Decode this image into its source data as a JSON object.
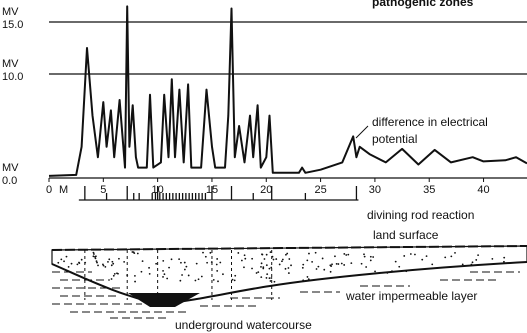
{
  "chart_data": {
    "type": "line",
    "header": "pathogenic zones",
    "y_unit": "MV",
    "x_unit": "M",
    "color": "#111111",
    "x": [
      0,
      2.5,
      3,
      3.5,
      4,
      4.5,
      5,
      5.3,
      5.7,
      6,
      6.5,
      7,
      7.2,
      7.4,
      7.7,
      8,
      8.2,
      9,
      9.3,
      9.6,
      10.3,
      10.6,
      11,
      11.3,
      11.6,
      12,
      12.4,
      12.8,
      13.1,
      14,
      14.5,
      15,
      15.3,
      16.2,
      16.5,
      16.8,
      17.1,
      17.5,
      18,
      18.5,
      18.8,
      19.2,
      19.5,
      20,
      20.3,
      20.6,
      21,
      23,
      23.3,
      23.6,
      25,
      27,
      28,
      28.3,
      28.6,
      29.5,
      31,
      32.5,
      34,
      35.5,
      37,
      39,
      40,
      42,
      43,
      44
    ],
    "values": [
      0.2,
      0.3,
      3,
      12.5,
      6,
      2,
      7.3,
      3,
      6.5,
      2,
      7.5,
      1,
      16.5,
      3,
      7,
      2,
      1,
      1,
      8,
      1,
      1.5,
      8,
      2,
      9.5,
      2,
      8.5,
      1.5,
      9,
      1,
      1,
      8.5,
      3,
      1,
      1,
      6,
      16.3,
      2,
      5,
      1.5,
      6,
      2,
      7,
      1,
      2,
      6,
      0.5,
      0.5,
      0.5,
      1,
      0.5,
      0.8,
      1.5,
      4,
      2,
      3,
      2.3,
      1.5,
      2.8,
      1.3,
      2.7,
      1.5,
      2,
      1.6,
      1.7,
      2,
      1.4
    ],
    "xlim": [
      0,
      44
    ],
    "ylim": [
      0,
      15
    ],
    "xticks": [
      {
        "value": 0,
        "label": "0"
      },
      5,
      10,
      15,
      20,
      25,
      30,
      35,
      40
    ],
    "yticks": [
      {
        "value": 0,
        "label": "0.0"
      },
      {
        "value": 10,
        "label": "10.0"
      },
      {
        "value": 15,
        "label": "15.0"
      }
    ],
    "grid": true,
    "annotation": [
      "difference in electrical",
      "potential"
    ],
    "rod_reaction": {
      "label": "divining rod reaction",
      "x": [
        3.3,
        5.3,
        7.2,
        7.8,
        8.3,
        9.5,
        9.8,
        10,
        10.2,
        10.5,
        10.8,
        11.1,
        11.4,
        11.7,
        12,
        12.3,
        12.6,
        12.9,
        13.2,
        13.5,
        13.8,
        14.1,
        14.4,
        15,
        16.8,
        18.8,
        20.5,
        23.6,
        28.3
      ],
      "values": [
        2,
        1,
        2,
        1,
        1,
        1,
        1,
        2,
        1,
        1,
        1,
        1,
        1,
        1,
        1,
        1,
        1,
        1,
        1,
        1,
        1,
        1,
        1,
        2,
        2,
        1,
        2,
        1,
        2
      ]
    },
    "diagram_labels": {
      "land": "land surface",
      "layer": "water impermeable layer",
      "watercourse": "underground watercourse"
    }
  }
}
